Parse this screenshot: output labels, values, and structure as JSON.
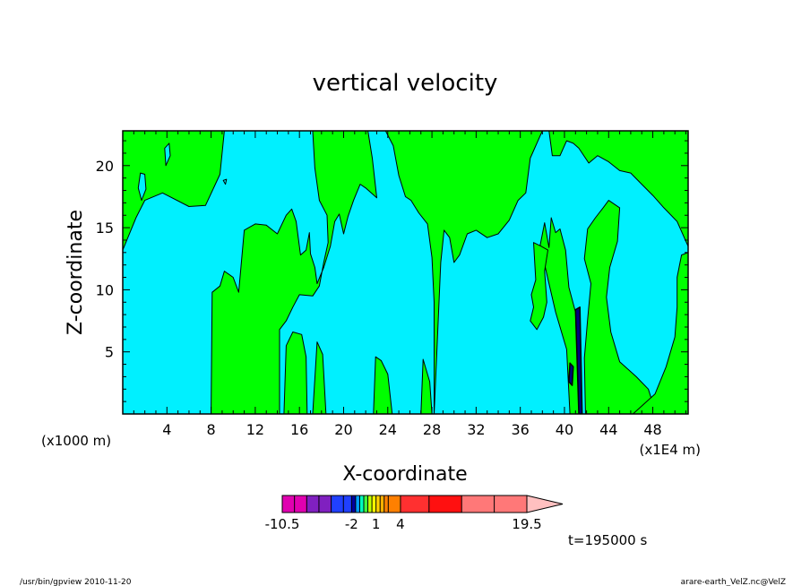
{
  "chart_data": {
    "type": "heatmap",
    "title": "vertical velocity",
    "xlabel": "X-coordinate",
    "ylabel": "Z-coordinate",
    "x_unit_left": "(x1000 m)",
    "x_unit_right": "(x1E4 m)",
    "xlim": [
      0,
      51.2
    ],
    "ylim": [
      0,
      22.8
    ],
    "x_ticks": [
      4,
      8,
      12,
      16,
      20,
      24,
      28,
      32,
      36,
      40,
      44,
      48
    ],
    "y_ticks": [
      5,
      10,
      15,
      20
    ],
    "grid": false,
    "time_label": "t=195000 s",
    "footer_left": "/usr/bin/gpview   2010-11-20",
    "footer_right": "arare-earth_VelZ.nc@VelZ",
    "colorbar": {
      "levels": [
        -10.5,
        -9,
        -7.5,
        -6,
        -4.5,
        -3,
        -2,
        -1.5,
        -1,
        -0.5,
        0,
        0.5,
        1,
        1.5,
        2,
        2.5,
        4,
        7.5,
        11.5,
        15.5,
        19.5
      ],
      "labels": [
        "-10.5",
        "-2",
        "1",
        "4",
        "19.5"
      ],
      "label_values": [
        -10.5,
        -2,
        1,
        4,
        19.5
      ],
      "colors": [
        "#e000b0",
        "#e000b0",
        "#8020c0",
        "#8020c0",
        "#2040ff",
        "#2040ff",
        "#0000a0",
        "#00a0ff",
        "#00ffc0",
        "#40ff40",
        "#c0ff00",
        "#ffff00",
        "#ffd000",
        "#ffb000",
        "#ff8000",
        "#ff8000",
        "#ff3030",
        "#ff1010",
        "#ff7878",
        "#ff7878"
      ],
      "extend_color": "#ffc0c0"
    },
    "field": {
      "background_color": "#00f0ff",
      "positive_color": "#00ff00",
      "negative_color": "#00f0ff",
      "strong_color": "#000080",
      "positive_regions": [
        [
          [
            0,
            13.2
          ],
          [
            1.2,
            15.8
          ],
          [
            2,
            17.2
          ],
          [
            3.6,
            17.8
          ],
          [
            6,
            16.7
          ],
          [
            7.5,
            16.8
          ],
          [
            8.8,
            19.3
          ],
          [
            9.2,
            22.8
          ],
          [
            0,
            22.8
          ]
        ],
        [
          [
            8,
            0
          ],
          [
            8.1,
            9.8
          ],
          [
            8.8,
            10.3
          ],
          [
            9.2,
            11.5
          ],
          [
            10,
            11
          ],
          [
            10.5,
            9.8
          ],
          [
            11,
            14.8
          ],
          [
            12,
            15.3
          ],
          [
            13,
            15.2
          ],
          [
            14,
            14.5
          ],
          [
            14.8,
            16
          ],
          [
            15.3,
            16.5
          ],
          [
            15.7,
            15.5
          ],
          [
            16.1,
            12.8
          ],
          [
            16.6,
            13.2
          ],
          [
            16.9,
            14.6
          ],
          [
            17,
            12.9
          ],
          [
            17.4,
            11.8
          ],
          [
            17.6,
            10.5
          ],
          [
            18.2,
            11.8
          ],
          [
            18.8,
            13.5
          ],
          [
            19.2,
            15.5
          ],
          [
            19.6,
            16.1
          ],
          [
            20,
            14.5
          ],
          [
            20.4,
            15.9
          ],
          [
            20.9,
            17.2
          ],
          [
            21.5,
            18.5
          ],
          [
            22,
            18.2
          ],
          [
            23,
            17.4
          ],
          [
            22.6,
            20.6
          ],
          [
            22.2,
            22.8
          ],
          [
            17.2,
            22.8
          ],
          [
            17.4,
            19.8
          ],
          [
            17.8,
            17.2
          ],
          [
            18.5,
            16
          ],
          [
            18.6,
            13.8
          ],
          [
            18.2,
            12.2
          ],
          [
            17.8,
            10.3
          ],
          [
            17.2,
            9.5
          ],
          [
            16,
            9.6
          ],
          [
            15.4,
            8.6
          ],
          [
            14.8,
            7.5
          ],
          [
            14.2,
            6.8
          ],
          [
            14.2,
            0
          ],
          [
            14.6,
            0
          ],
          [
            14.8,
            5.5
          ],
          [
            15.4,
            6.6
          ],
          [
            16.2,
            6.4
          ],
          [
            16.6,
            4.6
          ],
          [
            16.7,
            0
          ],
          [
            17.2,
            0
          ],
          [
            17.6,
            5.8
          ],
          [
            18.1,
            4.8
          ],
          [
            18.4,
            0
          ],
          [
            22.7,
            0
          ],
          [
            22.9,
            4.6
          ],
          [
            23.4,
            4.3
          ],
          [
            24,
            3.2
          ],
          [
            24.4,
            0
          ],
          [
            27,
            0
          ],
          [
            27.2,
            4.4
          ],
          [
            27.8,
            2.6
          ],
          [
            28,
            0
          ]
        ],
        [
          [
            28.2,
            0
          ],
          [
            28.8,
            12.2
          ],
          [
            29.1,
            14.8
          ],
          [
            29.6,
            14.2
          ],
          [
            30,
            12.2
          ],
          [
            30.5,
            12.8
          ],
          [
            31.2,
            14.5
          ],
          [
            32,
            14.8
          ],
          [
            33,
            14.2
          ],
          [
            34,
            14.5
          ],
          [
            35,
            15.6
          ],
          [
            35.8,
            17.2
          ],
          [
            36.5,
            17.8
          ],
          [
            36.9,
            20.6
          ],
          [
            37.6,
            22
          ],
          [
            38,
            22.8
          ],
          [
            23.8,
            22.8
          ],
          [
            24.5,
            21.6
          ],
          [
            25,
            19.2
          ],
          [
            25.6,
            17.5
          ],
          [
            26.1,
            17.2
          ],
          [
            26.8,
            16.2
          ],
          [
            27.6,
            15.3
          ],
          [
            28,
            12.6
          ],
          [
            28.2,
            9
          ]
        ],
        [
          [
            38.6,
            22.8
          ],
          [
            38.9,
            20.8
          ],
          [
            39.6,
            20.8
          ],
          [
            40.2,
            22
          ],
          [
            40.8,
            21.8
          ],
          [
            41.3,
            21.4
          ],
          [
            42.2,
            20.2
          ],
          [
            43,
            20.8
          ],
          [
            44,
            20.3
          ],
          [
            45,
            19.6
          ],
          [
            46,
            19.4
          ],
          [
            47,
            18.5
          ],
          [
            48,
            17.6
          ],
          [
            49,
            16.6
          ],
          [
            50.2,
            15.5
          ],
          [
            51.2,
            13.5
          ],
          [
            51.2,
            22.8
          ]
        ],
        [
          [
            40.5,
            0
          ],
          [
            40.2,
            5.2
          ],
          [
            39.2,
            8.2
          ],
          [
            38.6,
            10.5
          ],
          [
            37.8,
            13.6
          ],
          [
            38.2,
            15.4
          ],
          [
            38.6,
            13.4
          ],
          [
            38.8,
            15.8
          ],
          [
            39.2,
            14.6
          ],
          [
            39.6,
            14.9
          ],
          [
            40.1,
            13.2
          ],
          [
            40.4,
            10.2
          ],
          [
            41,
            8.2
          ],
          [
            41.2,
            3.3
          ],
          [
            41.5,
            0
          ]
        ],
        [
          [
            37.2,
            13.8
          ],
          [
            37.4,
            10.8
          ],
          [
            37,
            9.6
          ],
          [
            37.2,
            8.6
          ],
          [
            36.9,
            7.5
          ],
          [
            37.5,
            6.8
          ],
          [
            38.1,
            7.8
          ],
          [
            38.4,
            9
          ],
          [
            38.2,
            11.5
          ],
          [
            38.5,
            13.2
          ],
          [
            37.9,
            13.5
          ]
        ],
        [
          [
            41.9,
            0
          ],
          [
            41.8,
            4.5
          ],
          [
            42.1,
            7.6
          ],
          [
            42.4,
            10.5
          ],
          [
            41.8,
            12.5
          ],
          [
            42.1,
            14.9
          ],
          [
            42.8,
            15.8
          ],
          [
            43.5,
            16.6
          ],
          [
            44,
            17.2
          ],
          [
            45,
            16.6
          ],
          [
            44.8,
            13.9
          ],
          [
            44.1,
            11.8
          ],
          [
            43.8,
            9.4
          ],
          [
            44.2,
            6.6
          ],
          [
            45,
            4.2
          ],
          [
            46.5,
            3
          ],
          [
            47.6,
            2
          ],
          [
            48.3,
            0
          ]
        ],
        [
          [
            46.2,
            0
          ],
          [
            48.2,
            1.6
          ],
          [
            49.2,
            3.8
          ],
          [
            50,
            6.2
          ],
          [
            50.2,
            8.6
          ],
          [
            50.2,
            11
          ],
          [
            50.6,
            12.8
          ],
          [
            51.2,
            13
          ],
          [
            51.2,
            0
          ]
        ]
      ],
      "negative_regions": [
        [
          [
            1.4,
            18.2
          ],
          [
            1.7,
            17.2
          ],
          [
            2.1,
            18.1
          ],
          [
            2,
            19.3
          ],
          [
            1.6,
            19.4
          ]
        ],
        [
          [
            3.8,
            21.4
          ],
          [
            3.9,
            20
          ],
          [
            4.3,
            20.8
          ],
          [
            4.2,
            21.8
          ]
        ],
        [
          [
            9.1,
            18.8
          ],
          [
            9.3,
            18.5
          ],
          [
            9.4,
            18.9
          ]
        ]
      ],
      "strong_regions": [
        [
          [
            41,
            8.4
          ],
          [
            41.4,
            8.6
          ],
          [
            41.6,
            0
          ],
          [
            41.3,
            0
          ]
        ],
        [
          [
            40.4,
            2.6
          ],
          [
            40.7,
            2.3
          ],
          [
            40.8,
            3.8
          ],
          [
            40.5,
            4.1
          ]
        ]
      ]
    }
  }
}
